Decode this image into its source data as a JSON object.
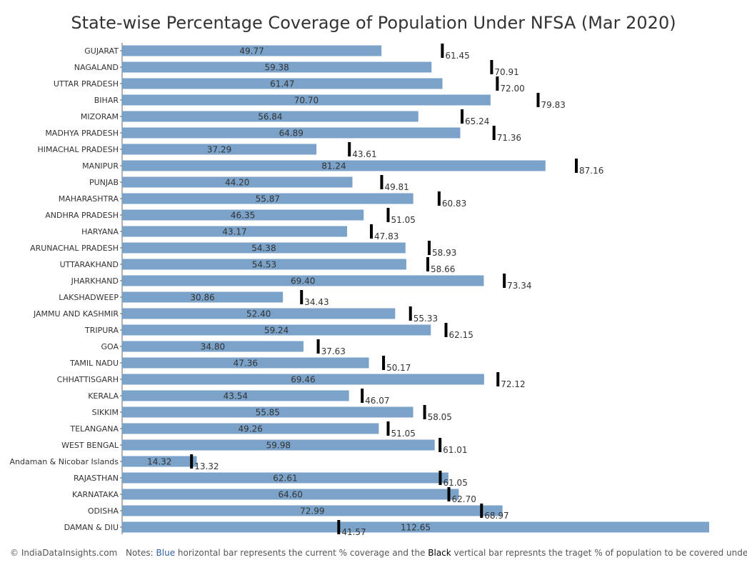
{
  "chart_data": {
    "type": "bar",
    "title": "State-wise Percentage Coverage of Population Under NFSA (Mar 2020)",
    "xlim": [
      0,
      112.65
    ],
    "grid": false,
    "colors": {
      "bar": "#7ba2c8",
      "target": "#000000"
    },
    "categories": [
      "GUJARAT",
      "NAGALAND",
      "UTTAR PRADESH",
      "BIHAR",
      "MIZORAM",
      "MADHYA PRADESH",
      "HIMACHAL PRADESH",
      "MANIPUR",
      "PUNJAB",
      "MAHARASHTRA",
      "ANDHRA PRADESH",
      "HARYANA",
      "ARUNACHAL PRADESH",
      "UTTARAKHAND",
      "JHARKHAND",
      "LAKSHADWEEP",
      "JAMMU AND KASHMIR",
      "TRIPURA",
      "GOA",
      "TAMIL NADU",
      "CHHATTISGARH",
      "KERALA",
      "SIKKIM",
      "TELANGANA",
      "WEST BENGAL",
      "Andaman & Nicobar Islands",
      "RAJASTHAN",
      "KARNATAKA",
      "ODISHA",
      "DAMAN & DIU"
    ],
    "series": [
      {
        "values": [
          49.77,
          59.38,
          61.47,
          70.7,
          56.84,
          64.89,
          37.29,
          81.24,
          44.2,
          55.87,
          46.35,
          43.17,
          54.38,
          54.53,
          69.4,
          30.86,
          52.4,
          59.24,
          34.8,
          47.36,
          69.46,
          43.54,
          55.85,
          49.26,
          59.98,
          14.32,
          62.61,
          64.6,
          72.99,
          112.65
        ]
      },
      {
        "values": [
          61.45,
          70.91,
          72.0,
          79.83,
          65.24,
          71.36,
          43.61,
          87.16,
          49.81,
          60.83,
          51.05,
          47.83,
          58.93,
          58.66,
          73.34,
          34.43,
          55.33,
          62.15,
          37.63,
          50.17,
          72.12,
          46.07,
          58.05,
          51.05,
          61.01,
          13.32,
          61.05,
          62.7,
          68.97,
          41.57
        ]
      }
    ],
    "value_labels": {
      "current": [
        "49.77",
        "59.38",
        "61.47",
        "70.70",
        "56.84",
        "64.89",
        "37.29",
        "81.24",
        "44.20",
        "55.87",
        "46.35",
        "43.17",
        "54.38",
        "54.53",
        "69.40",
        "30.86",
        "52.40",
        "59.24",
        "34.80",
        "47.36",
        "69.46",
        "43.54",
        "55.85",
        "49.26",
        "59.98",
        "14.32",
        "62.61",
        "64.60",
        "72.99",
        "112.65"
      ],
      "target": [
        "61.45",
        "70.91",
        "72.00",
        "79.83",
        "65.24",
        "71.36",
        "43.61",
        "87.16",
        "49.81",
        "60.83",
        "51.05",
        "47.83",
        "58.93",
        "58.66",
        "73.34",
        "34.43",
        "55.33",
        "62.15",
        "37.63",
        "50.17",
        "72.12",
        "46.07",
        "58.05",
        "51.05",
        "61.01",
        "13.32",
        "61.05",
        "62.70",
        "68.97",
        "41.57"
      ]
    }
  },
  "footer": {
    "copyright": "© IndiaDataInsights.com",
    "note_prefix": "Notes: ",
    "note_blue": "Blue",
    "note_mid": " horizontal bar represents the current % coverage and the ",
    "note_black": "Black",
    "note_suffix": " vertical bar represnts the traget % of population to be covered under NFSA"
  }
}
